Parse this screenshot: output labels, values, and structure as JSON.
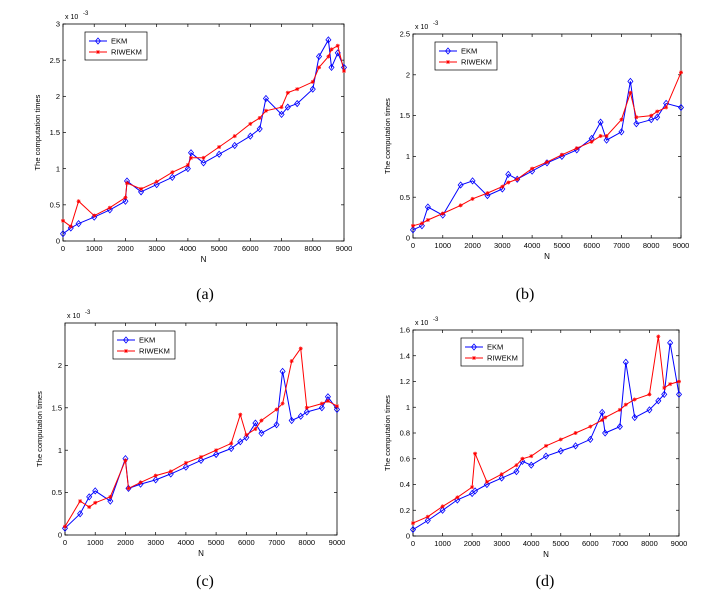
{
  "figure": {
    "captions": [
      "(a)",
      "(b)",
      "(c)",
      "(d)"
    ]
  },
  "colors": {
    "EKM": "#0000ff",
    "RIWEKM": "#ff0000"
  },
  "chart_data": [
    {
      "type": "line",
      "panel": "(a)",
      "xlabel": "N",
      "ylabel": "The computation times",
      "exponent_label": "x 10",
      "exponent_power": "-3",
      "xlim": [
        0,
        9000
      ],
      "ylim": [
        0,
        3
      ],
      "xticks": [
        0,
        1000,
        2000,
        3000,
        4000,
        5000,
        6000,
        7000,
        8000,
        9000
      ],
      "yticks": [
        0,
        0.5,
        1,
        1.5,
        2,
        2.5,
        3
      ],
      "legend": [
        "EKM",
        "RIWEKM"
      ],
      "legend_position": "top-left",
      "x": [
        0,
        250,
        500,
        1000,
        1500,
        2000,
        2050,
        2500,
        3000,
        3500,
        4000,
        4100,
        4500,
        5000,
        5500,
        6000,
        6300,
        6500,
        7000,
        7200,
        7500,
        8000,
        8200,
        8500,
        8600,
        8800,
        9000
      ],
      "series": [
        {
          "name": "EKM",
          "values": [
            0.1,
            0.18,
            0.24,
            0.33,
            0.43,
            0.55,
            0.83,
            0.68,
            0.78,
            0.88,
            1.0,
            1.22,
            1.08,
            1.2,
            1.32,
            1.45,
            1.55,
            1.97,
            1.75,
            1.85,
            1.9,
            2.1,
            2.55,
            2.78,
            2.4,
            2.6,
            2.4
          ]
        },
        {
          "name": "RIWEKM",
          "values": [
            0.28,
            0.2,
            0.55,
            0.35,
            0.46,
            0.6,
            0.8,
            0.72,
            0.82,
            0.95,
            1.05,
            1.15,
            1.15,
            1.3,
            1.45,
            1.62,
            1.7,
            1.8,
            1.85,
            2.05,
            2.1,
            2.2,
            2.4,
            2.55,
            2.65,
            2.7,
            2.35
          ]
        }
      ]
    },
    {
      "type": "line",
      "panel": "(b)",
      "xlabel": "N",
      "ylabel": "The computation times",
      "exponent_label": "x 10",
      "exponent_power": "-3",
      "xlim": [
        0,
        9000
      ],
      "ylim": [
        0,
        2.5
      ],
      "xticks": [
        0,
        1000,
        2000,
        3000,
        4000,
        5000,
        6000,
        7000,
        8000,
        9000
      ],
      "yticks": [
        0,
        0.5,
        1,
        1.5,
        2,
        2.5
      ],
      "legend": [
        "EKM",
        "RIWEKM"
      ],
      "legend_position": "top-left",
      "x": [
        0,
        300,
        500,
        1000,
        1600,
        2000,
        2500,
        3000,
        3200,
        3500,
        4000,
        4500,
        5000,
        5500,
        6000,
        6300,
        6500,
        7000,
        7300,
        7500,
        8000,
        8200,
        8500,
        9000
      ],
      "series": [
        {
          "name": "EKM",
          "values": [
            0.1,
            0.15,
            0.38,
            0.28,
            0.65,
            0.7,
            0.52,
            0.6,
            0.78,
            0.72,
            0.82,
            0.92,
            1.0,
            1.08,
            1.22,
            1.42,
            1.2,
            1.3,
            1.92,
            1.4,
            1.45,
            1.48,
            1.65,
            1.6
          ]
        },
        {
          "name": "RIWEKM",
          "values": [
            0.15,
            0.18,
            0.22,
            0.3,
            0.4,
            0.48,
            0.55,
            0.63,
            0.68,
            0.72,
            0.85,
            0.93,
            1.02,
            1.1,
            1.18,
            1.25,
            1.25,
            1.45,
            1.78,
            1.48,
            1.5,
            1.55,
            1.6,
            2.03
          ]
        }
      ]
    },
    {
      "type": "line",
      "panel": "(c)",
      "xlabel": "N",
      "ylabel": "The computation times",
      "exponent_label": "x 10",
      "exponent_power": "-3",
      "xlim": [
        0,
        9000
      ],
      "ylim": [
        0,
        2.5
      ],
      "xticks": [
        0,
        1000,
        2000,
        3000,
        4000,
        5000,
        6000,
        7000,
        8000,
        9000
      ],
      "yticks": [
        0,
        0.5,
        1,
        1.5,
        2
      ],
      "legend": [
        "EKM",
        "RIWEKM"
      ],
      "legend_position": "top-center",
      "x": [
        0,
        500,
        800,
        1000,
        1500,
        2000,
        2100,
        2500,
        3000,
        3500,
        4000,
        4500,
        5000,
        5500,
        5800,
        6000,
        6300,
        6500,
        7000,
        7200,
        7500,
        7800,
        8000,
        8500,
        8700,
        9000
      ],
      "series": [
        {
          "name": "EKM",
          "values": [
            0.08,
            0.25,
            0.45,
            0.52,
            0.4,
            0.9,
            0.55,
            0.6,
            0.65,
            0.72,
            0.8,
            0.88,
            0.95,
            1.02,
            1.1,
            1.15,
            1.32,
            1.2,
            1.3,
            1.93,
            1.35,
            1.4,
            1.45,
            1.5,
            1.63,
            1.48
          ]
        },
        {
          "name": "RIWEKM",
          "values": [
            0.1,
            0.4,
            0.33,
            0.38,
            0.45,
            0.88,
            0.55,
            0.62,
            0.7,
            0.75,
            0.85,
            0.92,
            1.0,
            1.08,
            1.42,
            1.18,
            1.25,
            1.35,
            1.48,
            1.55,
            2.05,
            2.2,
            1.5,
            1.55,
            1.58,
            1.52
          ]
        }
      ]
    },
    {
      "type": "line",
      "panel": "(d)",
      "xlabel": "N",
      "ylabel": "The computation times",
      "exponent_label": "x 10",
      "exponent_power": "-3",
      "xlim": [
        0,
        9000
      ],
      "ylim": [
        0,
        1.6
      ],
      "xticks": [
        0,
        1000,
        2000,
        3000,
        4000,
        5000,
        6000,
        7000,
        8000,
        9000
      ],
      "yticks": [
        0,
        0.2,
        0.4,
        0.6,
        0.8,
        1,
        1.2,
        1.4,
        1.6
      ],
      "legend": [
        "EKM",
        "RIWEKM"
      ],
      "legend_position": "top-center",
      "x": [
        0,
        500,
        1000,
        1500,
        2000,
        2100,
        2500,
        3000,
        3500,
        3700,
        4000,
        4500,
        5000,
        5500,
        6000,
        6400,
        6500,
        7000,
        7200,
        7500,
        8000,
        8300,
        8500,
        8700,
        9000
      ],
      "series": [
        {
          "name": "EKM",
          "values": [
            0.05,
            0.12,
            0.2,
            0.28,
            0.33,
            0.35,
            0.4,
            0.45,
            0.5,
            0.58,
            0.55,
            0.62,
            0.66,
            0.7,
            0.75,
            0.96,
            0.8,
            0.85,
            1.35,
            0.92,
            0.98,
            1.05,
            1.1,
            1.5,
            1.1
          ]
        },
        {
          "name": "RIWEKM",
          "values": [
            0.1,
            0.15,
            0.23,
            0.3,
            0.38,
            0.64,
            0.42,
            0.48,
            0.55,
            0.6,
            0.62,
            0.7,
            0.75,
            0.8,
            0.85,
            0.9,
            0.92,
            0.98,
            1.02,
            1.06,
            1.1,
            1.55,
            1.15,
            1.18,
            1.2
          ]
        }
      ]
    }
  ]
}
